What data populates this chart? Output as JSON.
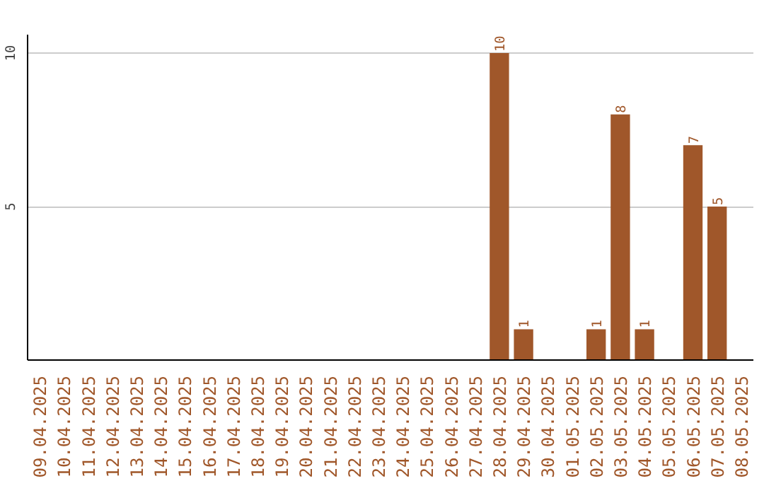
{
  "chart_data": {
    "type": "bar",
    "categories": [
      "09.04.2025",
      "10.04.2025",
      "11.04.2025",
      "12.04.2025",
      "13.04.2025",
      "14.04.2025",
      "15.04.2025",
      "16.04.2025",
      "17.04.2025",
      "18.04.2025",
      "19.04.2025",
      "20.04.2025",
      "21.04.2025",
      "22.04.2025",
      "23.04.2025",
      "24.04.2025",
      "25.04.2025",
      "26.04.2025",
      "27.04.2025",
      "28.04.2025",
      "29.04.2025",
      "30.04.2025",
      "01.05.2025",
      "02.05.2025",
      "03.05.2025",
      "04.05.2025",
      "05.05.2025",
      "06.05.2025",
      "07.05.2025",
      "08.05.2025"
    ],
    "values": [
      0,
      0,
      0,
      0,
      0,
      0,
      0,
      0,
      0,
      0,
      0,
      0,
      0,
      0,
      0,
      0,
      0,
      0,
      0,
      10,
      1,
      0,
      0,
      1,
      8,
      1,
      0,
      7,
      5,
      0
    ],
    "value_labels": [
      null,
      null,
      null,
      null,
      null,
      null,
      null,
      null,
      null,
      null,
      null,
      null,
      null,
      null,
      null,
      null,
      null,
      null,
      null,
      "10",
      "1",
      null,
      null,
      "1",
      "8",
      "1",
      null,
      "7",
      "5",
      null
    ],
    "color": "#a0572a",
    "ylim": [
      0,
      10.6
    ],
    "yticks": [
      5,
      10
    ],
    "grid": "y"
  }
}
